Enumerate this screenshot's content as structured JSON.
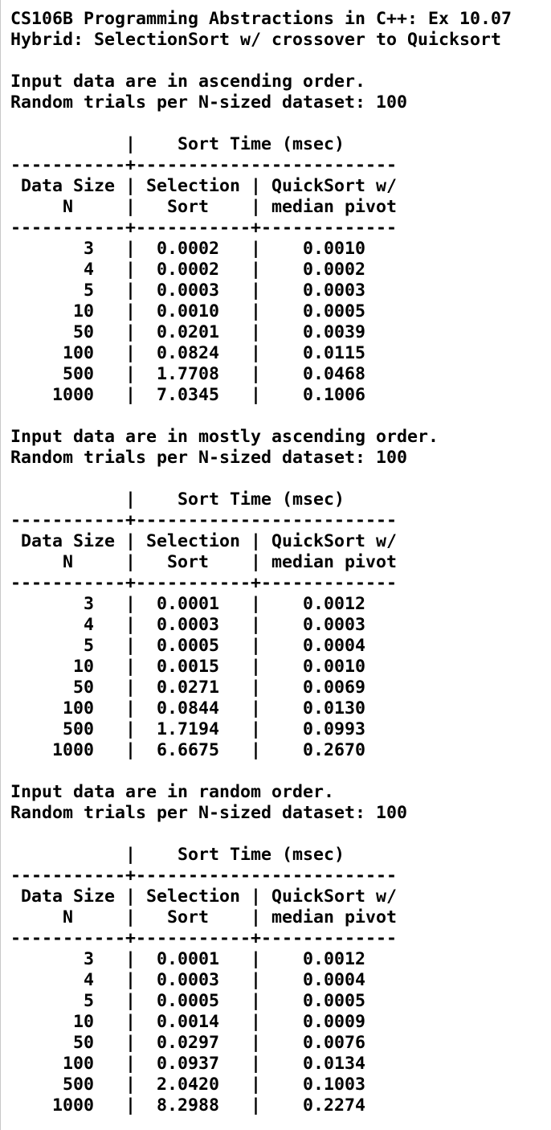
{
  "title_line_1": "CS106B Programming Abstractions in C++: Ex 10.07",
  "title_line_2": "Hybrid: SelectionSort w/ crossover to Quicksort",
  "column_headers": {
    "group_line": "           |    Sort Time (msec)",
    "rule_top": "-----------+-------------------------",
    "header_line_1": " Data Size | Selection | QuickSort w/",
    "header_line_2": "     N     |   Sort    | median pivot",
    "rule_bottom": "-----------+-----------+-------------"
  },
  "sections": [
    {
      "order_line": "Input data are in ascending order.",
      "trials_line": "Random trials per N-sized dataset: 100",
      "rows": [
        "       3   |  0.0002   |    0.0010",
        "       4   |  0.0002   |    0.0002",
        "       5   |  0.0003   |    0.0003",
        "      10   |  0.0010   |    0.0005",
        "      50   |  0.0201   |    0.0039",
        "     100   |  0.0824   |    0.0115",
        "     500   |  1.7708   |    0.0468",
        "    1000   |  7.0345   |    0.1006"
      ]
    },
    {
      "order_line": "Input data are in mostly ascending order.",
      "trials_line": "Random trials per N-sized dataset: 100",
      "rows": [
        "       3   |  0.0001   |    0.0012",
        "       4   |  0.0003   |    0.0003",
        "       5   |  0.0005   |    0.0004",
        "      10   |  0.0015   |    0.0010",
        "      50   |  0.0271   |    0.0069",
        "     100   |  0.0844   |    0.0130",
        "     500   |  1.7194   |    0.0993",
        "    1000   |  6.6675   |    0.2670"
      ]
    },
    {
      "order_line": "Input data are in random order.",
      "trials_line": "Random trials per N-sized dataset: 100",
      "rows": [
        "       3   |  0.0001   |    0.0012",
        "       4   |  0.0003   |    0.0004",
        "       5   |  0.0005   |    0.0005",
        "      10   |  0.0014   |    0.0009",
        "      50   |  0.0297   |    0.0076",
        "     100   |  0.0937   |    0.0134",
        "     500   |  2.0420   |    0.1003",
        "    1000   |  8.2988   |    0.2274"
      ]
    }
  ]
}
